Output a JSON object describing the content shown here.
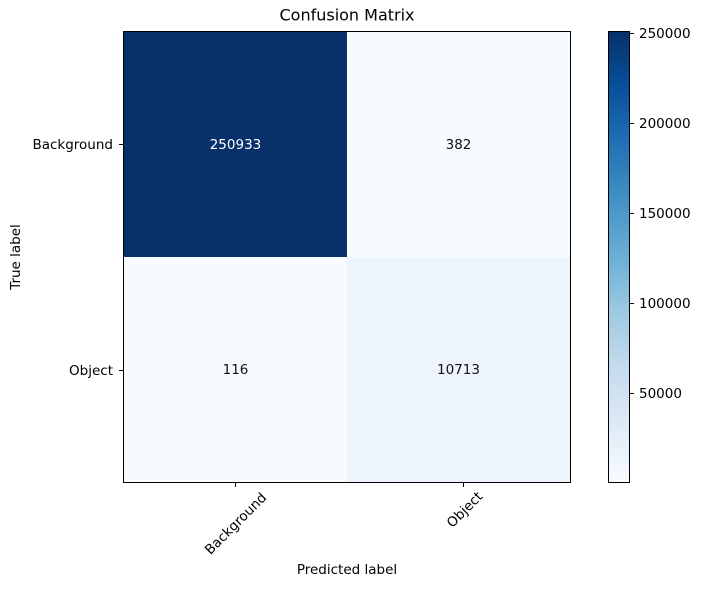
{
  "chart_data": {
    "type": "heatmap",
    "title": "Confusion Matrix",
    "xlabel": "Predicted label",
    "ylabel": "True label",
    "x_categories": [
      "Background",
      "Object"
    ],
    "y_categories": [
      "Background",
      "Object"
    ],
    "matrix": [
      [
        250933,
        382
      ],
      [
        116,
        10713
      ]
    ],
    "colormap": "Blues",
    "value_range": [
      116,
      250933
    ],
    "legend_position": "right-colorbar",
    "grid": false,
    "x_tick_rotation_deg": 45,
    "cells": [
      {
        "row": "Background",
        "col": "Background",
        "value": "250933",
        "bg": "#08306b",
        "fg": "#ffffff"
      },
      {
        "row": "Background",
        "col": "Object",
        "value": "382",
        "bg": "#f7fbff",
        "fg": "#111111"
      },
      {
        "row": "Object",
        "col": "Background",
        "value": "116",
        "bg": "#f7fbff",
        "fg": "#111111"
      },
      {
        "row": "Object",
        "col": "Object",
        "value": "10713",
        "bg": "#edf4fb",
        "fg": "#111111"
      }
    ],
    "colorbar": {
      "tick_labels": [
        "250000",
        "200000",
        "150000",
        "100000",
        "50000"
      ],
      "gradient_stops_top_to_bottom": [
        "#08306b",
        "#08519c",
        "#2171b5",
        "#4292c6",
        "#6baed6",
        "#9ecae1",
        "#c6dbef",
        "#deebf7",
        "#f7fbff"
      ]
    },
    "colors": {
      "background": "#ffffff",
      "spine": "#000000",
      "text": "#000000"
    }
  }
}
